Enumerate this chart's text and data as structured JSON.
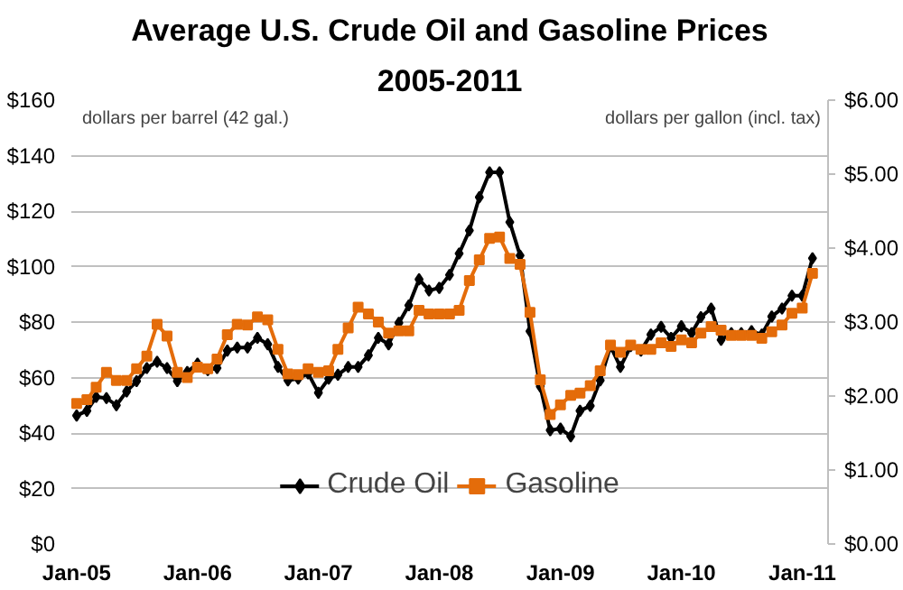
{
  "chart_data": {
    "type": "line",
    "title": "Average U.S. Crude Oil and Gasoline Prices",
    "subtitle": "2005-2011",
    "ylabel": "dollars per barrel (42 gal.)",
    "y2label": "dollars per gallon (incl. tax)",
    "x": [
      "2005-01",
      "2005-02",
      "2005-03",
      "2005-04",
      "2005-05",
      "2005-06",
      "2005-07",
      "2005-08",
      "2005-09",
      "2005-10",
      "2005-11",
      "2005-12",
      "2006-01",
      "2006-02",
      "2006-03",
      "2006-04",
      "2006-05",
      "2006-06",
      "2006-07",
      "2006-08",
      "2006-09",
      "2006-10",
      "2006-11",
      "2006-12",
      "2007-01",
      "2007-02",
      "2007-03",
      "2007-04",
      "2007-05",
      "2007-06",
      "2007-07",
      "2007-08",
      "2007-09",
      "2007-10",
      "2007-11",
      "2007-12",
      "2008-01",
      "2008-02",
      "2008-03",
      "2008-04",
      "2008-05",
      "2008-06",
      "2008-07",
      "2008-08",
      "2008-09",
      "2008-10",
      "2008-11",
      "2008-12",
      "2009-01",
      "2009-02",
      "2009-03",
      "2009-04",
      "2009-05",
      "2009-06",
      "2009-07",
      "2009-08",
      "2009-09",
      "2009-10",
      "2009-11",
      "2009-12",
      "2010-01",
      "2010-02",
      "2010-03",
      "2010-04",
      "2010-05",
      "2010-06",
      "2010-07",
      "2010-08",
      "2010-09",
      "2010-10",
      "2010-11",
      "2010-12",
      "2011-01",
      "2011-02"
    ],
    "series": [
      {
        "name": "Crude Oil",
        "color": "#000000",
        "marker": "diamond",
        "values": [
          46.3,
          48,
          53,
          52.6,
          50,
          55,
          58.7,
          63.4,
          65.7,
          63.4,
          58.7,
          62,
          65,
          62.7,
          63.4,
          69.7,
          70.8,
          70.8,
          74.3,
          72,
          63.8,
          59,
          59.6,
          61.5,
          54.5,
          59.6,
          61,
          63.8,
          63.8,
          68,
          74.3,
          72,
          79.7,
          86,
          95.4,
          91.4,
          92.3,
          97,
          104.7,
          113,
          125,
          134,
          134,
          116,
          104,
          76.7,
          56.8,
          41,
          41.6,
          38.8,
          48,
          49.8,
          59,
          71.3,
          63.8,
          71.3,
          69.7,
          75.5,
          78.3,
          74.3,
          78.5,
          76,
          81.8,
          84.9,
          73.6,
          76,
          76,
          76.7,
          75.5,
          82,
          84.9,
          89.5,
          89.5,
          103
        ]
      },
      {
        "name": "Gasoline",
        "color": "#e46c0a",
        "marker": "square",
        "axis": "y2",
        "values": [
          1.9,
          1.95,
          2.12,
          2.32,
          2.21,
          2.21,
          2.37,
          2.54,
          2.97,
          2.81,
          2.32,
          2.25,
          2.39,
          2.37,
          2.5,
          2.83,
          2.97,
          2.96,
          3.07,
          3.03,
          2.63,
          2.3,
          2.29,
          2.37,
          2.32,
          2.34,
          2.63,
          2.92,
          3.2,
          3.11,
          3.0,
          2.85,
          2.88,
          2.88,
          3.16,
          3.11,
          3.11,
          3.11,
          3.16,
          3.56,
          3.84,
          4.13,
          4.15,
          3.86,
          3.78,
          3.13,
          2.22,
          1.75,
          1.88,
          2.01,
          2.04,
          2.14,
          2.34,
          2.69,
          2.59,
          2.69,
          2.63,
          2.63,
          2.72,
          2.67,
          2.76,
          2.72,
          2.85,
          2.94,
          2.89,
          2.82,
          2.82,
          2.82,
          2.78,
          2.87,
          2.96,
          3.12,
          3.19,
          3.66
        ]
      }
    ],
    "xlim": [
      "2004-12-16",
      "2011-03-20"
    ],
    "xticks": [
      {
        "value": "2005-01",
        "label": "Jan-05"
      },
      {
        "value": "2006-01",
        "label": "Jan-06"
      },
      {
        "value": "2007-01",
        "label": "Jan-07"
      },
      {
        "value": "2008-01",
        "label": "Jan-08"
      },
      {
        "value": "2009-01",
        "label": "Jan-09"
      },
      {
        "value": "2010-01",
        "label": "Jan-10"
      },
      {
        "value": "2011-01",
        "label": "Jan-11"
      }
    ],
    "ylim": [
      0,
      160
    ],
    "yticks": [
      {
        "value": 0,
        "label": "$0"
      },
      {
        "value": 20,
        "label": "$20"
      },
      {
        "value": 40,
        "label": "$40"
      },
      {
        "value": 60,
        "label": "$60"
      },
      {
        "value": 80,
        "label": "$80"
      },
      {
        "value": 100,
        "label": "$100"
      },
      {
        "value": 120,
        "label": "$120"
      },
      {
        "value": 140,
        "label": "$140"
      },
      {
        "value": 160,
        "label": "$160"
      }
    ],
    "y2lim": [
      0,
      6
    ],
    "y2ticks": [
      {
        "value": 0,
        "label": "$0.00"
      },
      {
        "value": 1,
        "label": "$1.00"
      },
      {
        "value": 2,
        "label": "$2.00"
      },
      {
        "value": 3,
        "label": "$3.00"
      },
      {
        "value": 4,
        "label": "$4.00"
      },
      {
        "value": 5,
        "label": "$5.00"
      },
      {
        "value": 6,
        "label": "$6.00"
      }
    ],
    "grid": "y",
    "legend": "bottom",
    "line_style": "solid"
  }
}
